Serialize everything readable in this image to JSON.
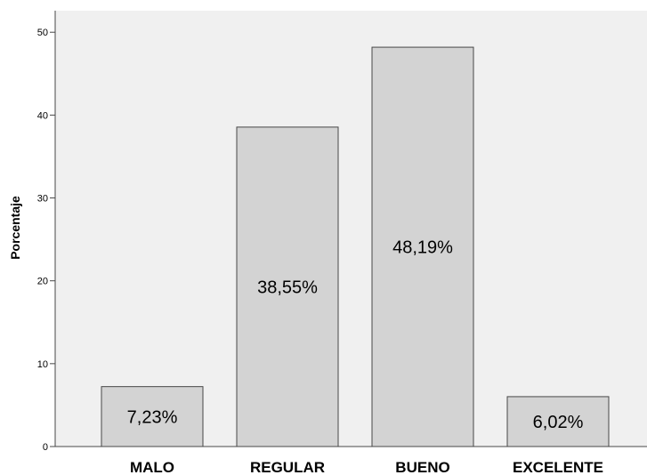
{
  "chart_data": {
    "type": "bar",
    "title": "",
    "xlabel": "",
    "ylabel": "Porcentaje",
    "categories": [
      "MALO",
      "REGULAR",
      "BUENO",
      "EXCELENTE"
    ],
    "values": [
      7.23,
      38.55,
      48.19,
      6.02
    ],
    "data_labels": [
      "7,23%",
      "38,55%",
      "48,19%",
      "6,02%"
    ],
    "yticks": [
      "0",
      "10",
      "20",
      "30",
      "40",
      "50"
    ],
    "ylim": [
      0,
      52.6
    ],
    "grid": false,
    "legend": "none",
    "colors": {
      "plot_background": "#f0f0f0",
      "bar_fill": "#d3d3d3",
      "bar_stroke": "#474747",
      "axis": "#474747"
    }
  }
}
